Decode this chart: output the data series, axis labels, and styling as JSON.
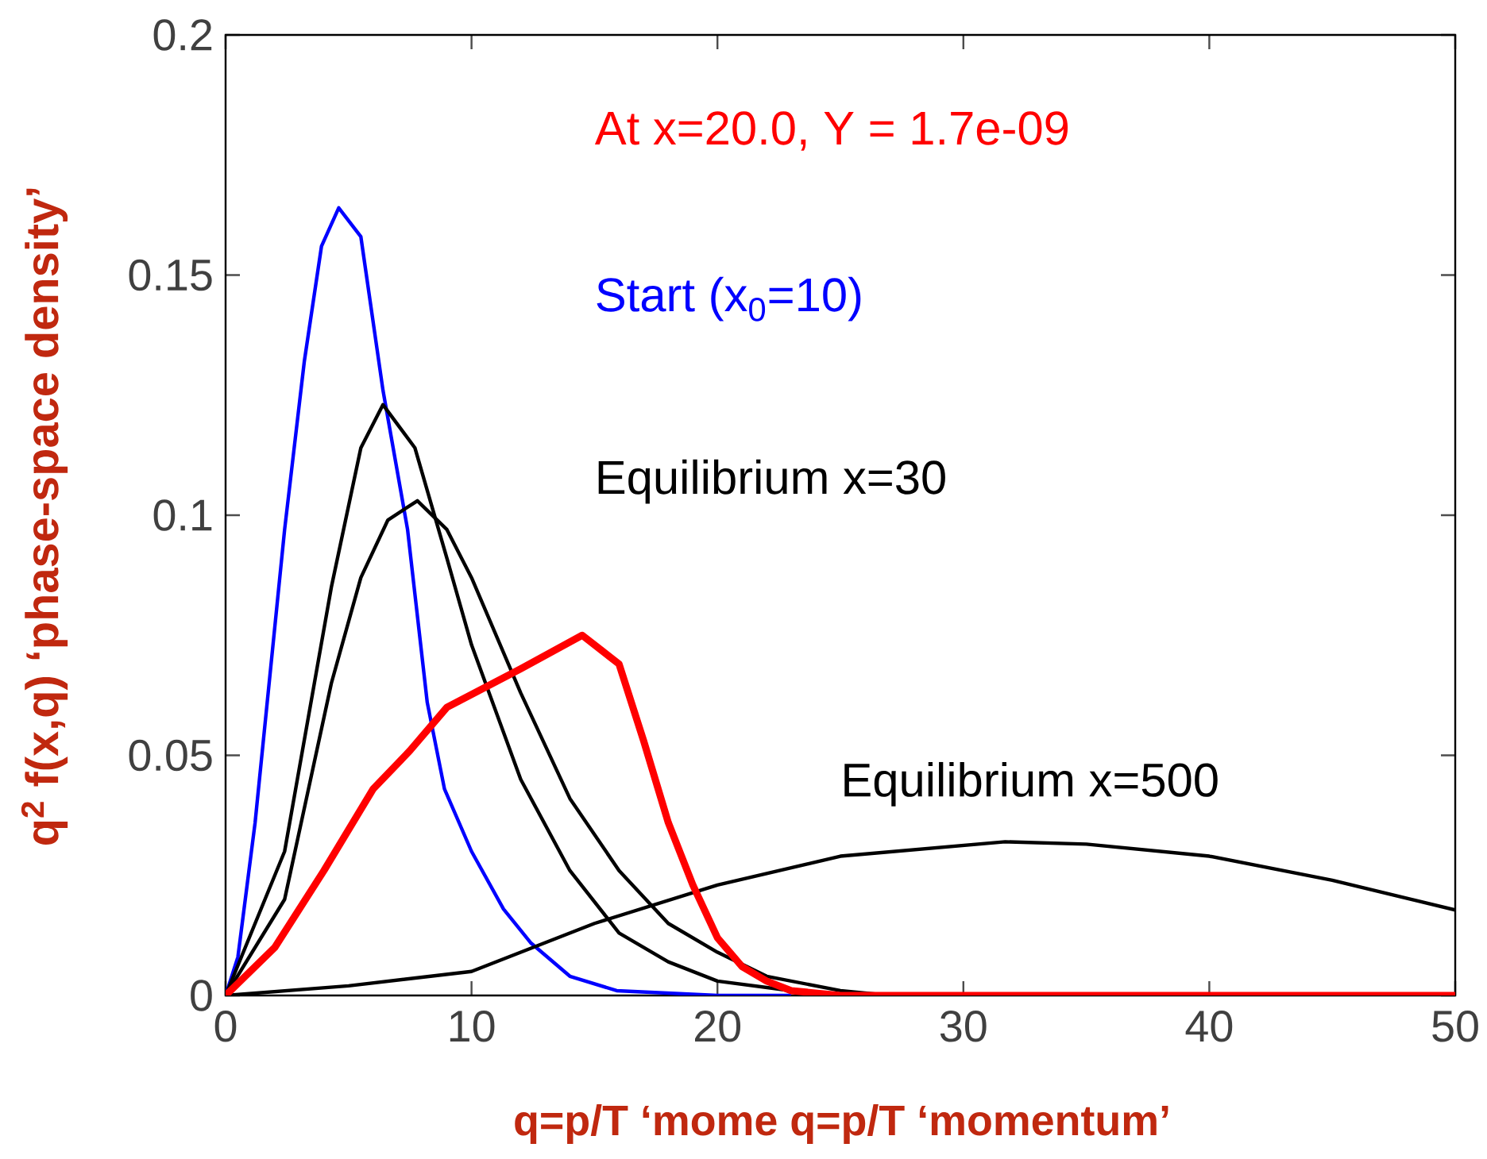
{
  "chart_data": {
    "type": "line",
    "xlabel": "q=p/T  ‘mome q=p/T  ‘momentum’",
    "ylabel": "q$^{2}$ f(x,q)  ‘phase-space density’",
    "xlim": [
      0,
      50
    ],
    "ylim": [
      0,
      0.2
    ],
    "xticks": [
      0,
      10,
      20,
      30,
      40,
      50
    ],
    "yticks": [
      0,
      0.05,
      0.1,
      0.15,
      0.2
    ],
    "grid": false,
    "marker": "none",
    "line_style": "solid",
    "series": [
      {
        "color": "#0000ff",
        "x": [
          0,
          0.5,
          1.2,
          2.4,
          3.2,
          3.9,
          4.6,
          5.5,
          6.4,
          7.4,
          8.2,
          8.9,
          10,
          11.3,
          12.4,
          14,
          15.9,
          20,
          23
        ],
        "values": [
          0,
          0.008,
          0.036,
          0.097,
          0.132,
          0.156,
          0.164,
          0.158,
          0.126,
          0.097,
          0.061,
          0.043,
          0.03,
          0.018,
          0.011,
          0.004,
          0.001,
          0,
          0
        ]
      },
      {
        "color": "#000000",
        "x": [
          0,
          2.4,
          4.3,
          5.5,
          6.4,
          7.7,
          9,
          10,
          12,
          14,
          16,
          18,
          20,
          23,
          25
        ],
        "values": [
          0,
          0.03,
          0.085,
          0.114,
          0.123,
          0.114,
          0.091,
          0.073,
          0.045,
          0.026,
          0.013,
          0.007,
          0.003,
          0.001,
          0
        ]
      },
      {
        "color": "#000000",
        "x": [
          0,
          2.4,
          4.3,
          5.5,
          6.6,
          7.8,
          9,
          10,
          12,
          14,
          16,
          18,
          20,
          22,
          25,
          27
        ],
        "values": [
          0,
          0.02,
          0.065,
          0.087,
          0.099,
          0.103,
          0.097,
          0.087,
          0.063,
          0.041,
          0.026,
          0.015,
          0.009,
          0.004,
          0.001,
          0
        ]
      },
      {
        "color": "#000000",
        "x": [
          0,
          5,
          10,
          15,
          20,
          25,
          31.7,
          35,
          40,
          45,
          50
        ],
        "values": [
          0,
          0.002,
          0.005,
          0.015,
          0.023,
          0.029,
          0.032,
          0.0315,
          0.029,
          0.024,
          0.0178
        ]
      },
      {
        "color": "#ff0000",
        "x": [
          0,
          2,
          4,
          6,
          7.5,
          9,
          12,
          14.5,
          16,
          17,
          18,
          19,
          20,
          21,
          22,
          23,
          25,
          50
        ],
        "values": [
          0,
          0.01,
          0.026,
          0.043,
          0.051,
          0.06,
          0.068,
          0.075,
          0.069,
          0.053,
          0.036,
          0.023,
          0.012,
          0.006,
          0.003,
          0.001,
          0,
          0
        ]
      }
    ],
    "annotations": [
      "At x=20.0,  Y = 1.7e-09",
      "Start (x$_{0}$=10)",
      "Equilibrium x=30",
      "Equilibrium x=500"
    ]
  }
}
